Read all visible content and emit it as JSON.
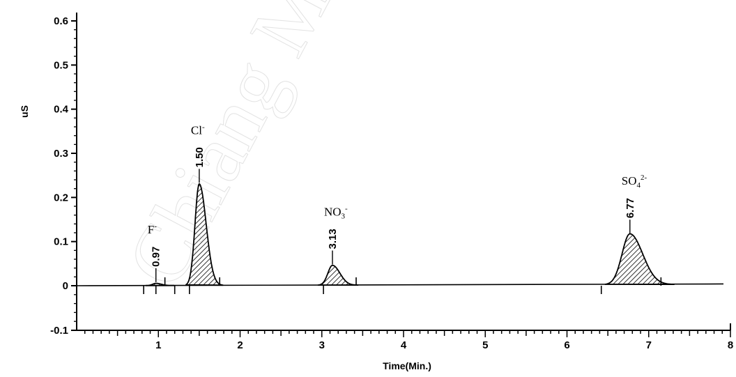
{
  "chart_data": {
    "type": "line",
    "title": "",
    "xlabel": "Time(Min.)",
    "ylabel": "uS",
    "xlim": [
      0,
      8
    ],
    "ylim": [
      -0.1,
      0.6
    ],
    "x_ticks": [
      "1",
      "2",
      "3",
      "4",
      "5",
      "6",
      "7",
      "8"
    ],
    "y_ticks": [
      "0.6",
      "0.5",
      "0.4",
      "0.3",
      "0.2",
      "0.1",
      "0",
      "-0.1"
    ],
    "y_tick_values": [
      0.6,
      0.5,
      0.4,
      0.3,
      0.2,
      0.1,
      0,
      -0.1
    ],
    "x_tick_values": [
      1,
      2,
      3,
      4,
      5,
      6,
      7,
      8
    ],
    "grid": false,
    "peaks": [
      {
        "ion": "F",
        "charge": "-",
        "rt": "0.97",
        "time": 0.97,
        "height": 0.005,
        "width": 0.05
      },
      {
        "ion": "Cl",
        "charge": "-",
        "rt": "1.50",
        "time": 1.5,
        "height": 0.23,
        "width": 0.065
      },
      {
        "ion": "NO",
        "sub": "3",
        "charge": "-",
        "rt": "3.13",
        "time": 3.13,
        "height": 0.045,
        "width": 0.07
      },
      {
        "ion": "SO",
        "sub": "4",
        "charge": "2-",
        "rt": "6.77",
        "time": 6.77,
        "height": 0.115,
        "width": 0.12
      }
    ],
    "baseline_marks": [
      0.82,
      0.97,
      1.08,
      1.2,
      1.38,
      1.75,
      3.02,
      3.42,
      6.42,
      7.15
    ],
    "watermark": "Chiang Mai"
  }
}
